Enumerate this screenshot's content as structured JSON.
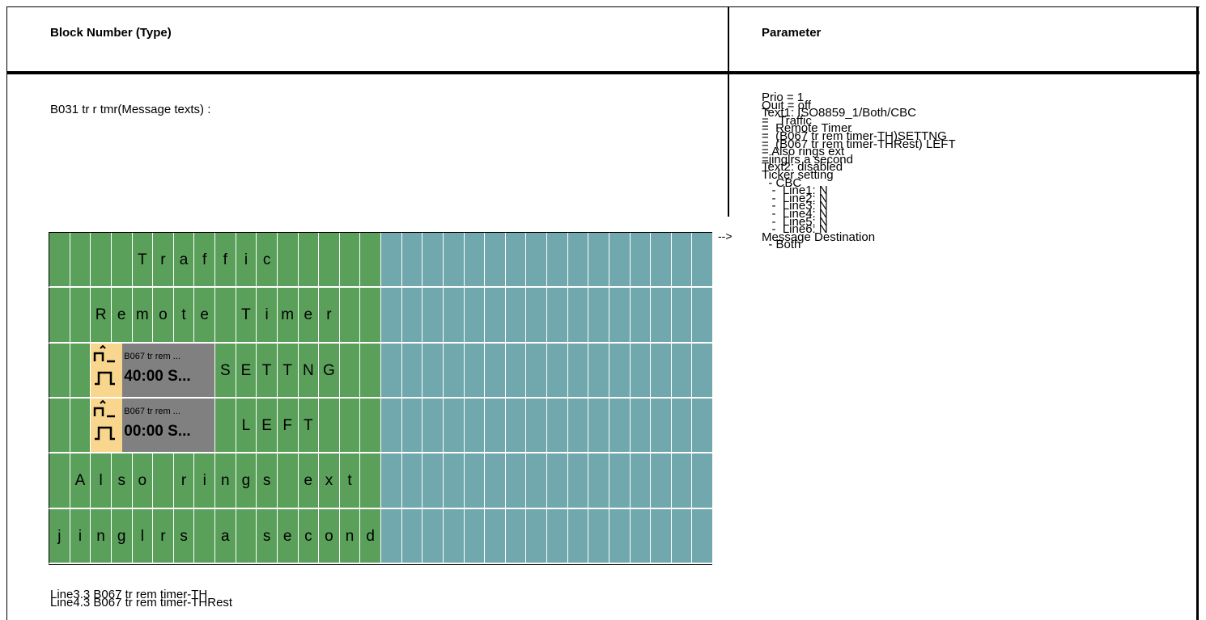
{
  "headers": {
    "block_number_type": "Block Number (Type)",
    "parameter": "Parameter"
  },
  "block_title": "B031 tr r tmr(Message texts) :",
  "arrow": "-->",
  "parameters": [
    "Prio = 1",
    "Quit = off",
    "Text1: ISO8859_1/Both/CBC",
    "=   Traffic",
    "=  Remote Timer",
    "=  (B067 tr rem timer-TH)SETTNG",
    "=  (B067 tr rem timer-THRest) LEFT",
    "= Also rings ext",
    "=jinglrs a second",
    "Text2: disabled",
    "Ticker setting",
    "  - CBC",
    "   -  Line1: N",
    "   -  Line2: N",
    "   -  Line3: N",
    "   -  Line4: N",
    "   -  Line5: N",
    "   -  Line6: N",
    "Message Destination",
    "  - Both"
  ],
  "display": {
    "green_cols": 16,
    "total_cols": 32,
    "rows": [
      {
        "chars": [
          "",
          "",
          "",
          "",
          "T",
          "r",
          "a",
          "f",
          "f",
          "i",
          "c",
          "",
          "",
          "",
          "",
          ""
        ]
      },
      {
        "chars": [
          "",
          "",
          "R",
          "e",
          "m",
          "o",
          "t",
          "e",
          "",
          "T",
          "i",
          "m",
          "e",
          "r",
          "",
          ""
        ]
      },
      {
        "chars": [
          "",
          "",
          "",
          "",
          "",
          "",
          "",
          "",
          "S",
          "E",
          "T",
          "T",
          "N",
          "G",
          "",
          ""
        ],
        "block": {
          "start": 2,
          "span": 6,
          "small": "B067 tr rem ...",
          "big": "40:00 S..."
        }
      },
      {
        "chars": [
          "",
          "",
          "",
          "",
          "",
          "",
          "",
          "",
          "",
          "L",
          "E",
          "F",
          "T",
          "",
          "",
          ""
        ],
        "block": {
          "start": 2,
          "span": 6,
          "small": "B067 tr rem ...",
          "big": "00:00 S..."
        }
      },
      {
        "chars": [
          "",
          "A",
          "l",
          "s",
          "o",
          "",
          "r",
          "i",
          "n",
          "g",
          "s",
          "",
          "e",
          "x",
          "t",
          ""
        ]
      },
      {
        "chars": [
          "j",
          "i",
          "n",
          "g",
          "l",
          "r",
          "s",
          "",
          "a",
          "",
          "s",
          "e",
          "c",
          "o",
          "n",
          "d"
        ]
      }
    ]
  },
  "notes": [
    "Line3.3 B067 tr rem timer-TH",
    "Line4.3 B067 tr rem timer-THRest"
  ]
}
